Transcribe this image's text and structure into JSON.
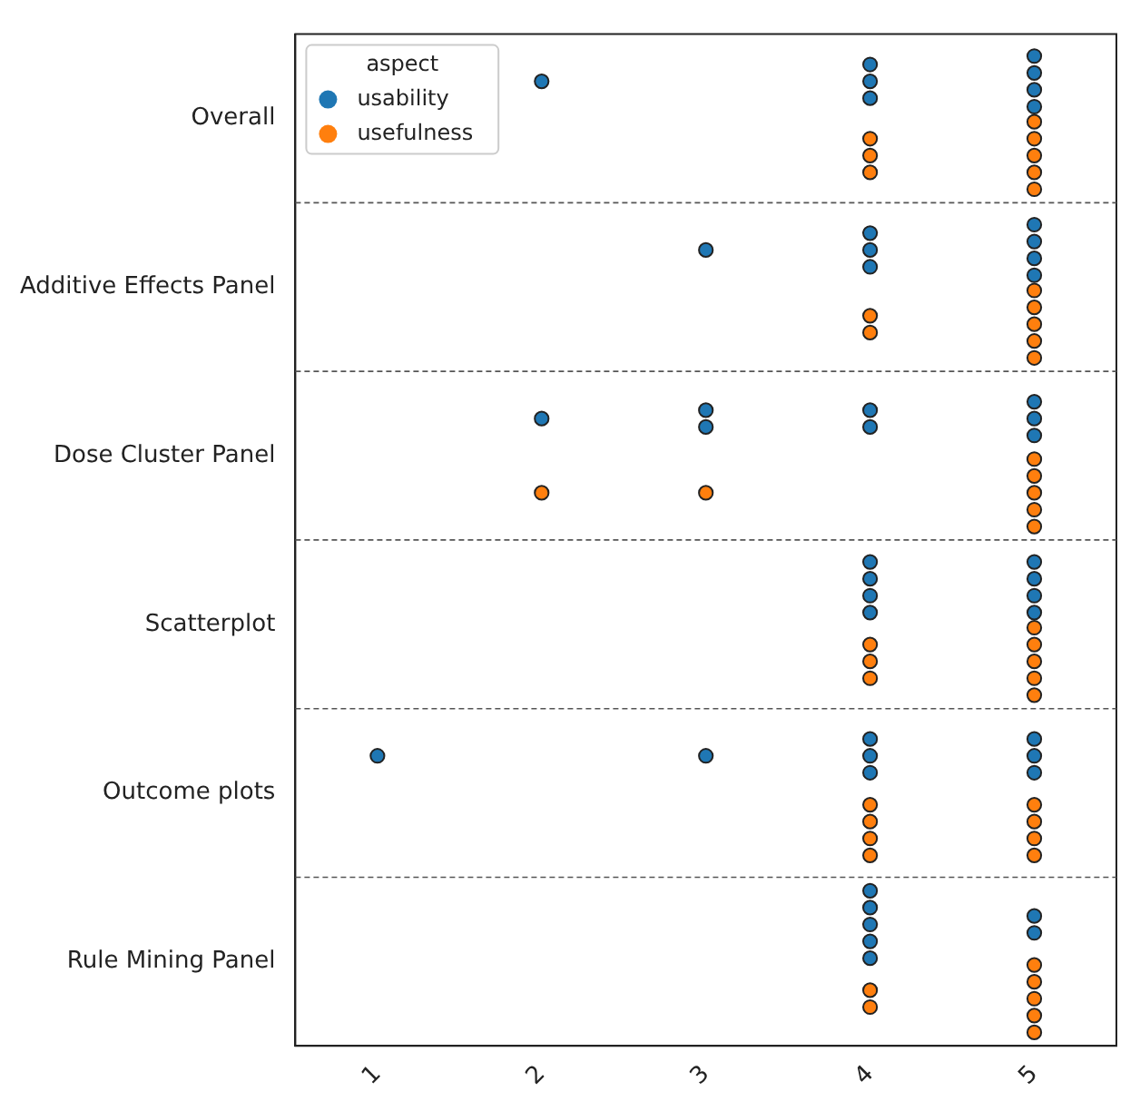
{
  "chart_data": {
    "type": "scatter",
    "orientation": "horizontal",
    "legend_title": "aspect",
    "legend": "top left",
    "grid": "y",
    "line_style": "dashed",
    "marker": "circle",
    "categories": [
      "Overall",
      "Additive Effects Panel",
      "Dose Cluster Panel",
      "Scatterplot",
      "Outcome plots",
      "Rule Mining Panel"
    ],
    "xlim": [
      0.5,
      5.5
    ],
    "xticks": [
      1,
      2,
      3,
      4,
      5
    ],
    "series": [
      {
        "name": "usability",
        "color": "#1f77b4",
        "x": [
          "Overall",
          "Overall",
          "Overall",
          "Overall",
          "Overall",
          "Overall",
          "Overall",
          "Overall",
          "Additive Effects Panel",
          "Additive Effects Panel",
          "Additive Effects Panel",
          "Additive Effects Panel",
          "Additive Effects Panel",
          "Additive Effects Panel",
          "Additive Effects Panel",
          "Additive Effects Panel",
          "Dose Cluster Panel",
          "Dose Cluster Panel",
          "Dose Cluster Panel",
          "Dose Cluster Panel",
          "Dose Cluster Panel",
          "Dose Cluster Panel",
          "Dose Cluster Panel",
          "Dose Cluster Panel",
          "Scatterplot",
          "Scatterplot",
          "Scatterplot",
          "Scatterplot",
          "Scatterplot",
          "Scatterplot",
          "Scatterplot",
          "Scatterplot",
          "Outcome plots",
          "Outcome plots",
          "Outcome plots",
          "Outcome plots",
          "Outcome plots",
          "Outcome plots",
          "Outcome plots",
          "Outcome plots",
          "Rule Mining Panel",
          "Rule Mining Panel",
          "Rule Mining Panel",
          "Rule Mining Panel",
          "Rule Mining Panel",
          "Rule Mining Panel",
          "Rule Mining Panel"
        ],
        "values": [
          2,
          4,
          4,
          4,
          5,
          5,
          5,
          5,
          3,
          4,
          4,
          4,
          5,
          5,
          5,
          5,
          2,
          3,
          3,
          4,
          4,
          5,
          5,
          5,
          4,
          4,
          4,
          4,
          5,
          5,
          5,
          5,
          1,
          3,
          4,
          4,
          4,
          5,
          5,
          5,
          4,
          4,
          4,
          4,
          4,
          5,
          5
        ]
      },
      {
        "name": "usefulness",
        "color": "#ff7f0e",
        "x": [
          "Overall",
          "Overall",
          "Overall",
          "Overall",
          "Overall",
          "Overall",
          "Overall",
          "Overall",
          "Additive Effects Panel",
          "Additive Effects Panel",
          "Additive Effects Panel",
          "Additive Effects Panel",
          "Additive Effects Panel",
          "Additive Effects Panel",
          "Additive Effects Panel",
          "Dose Cluster Panel",
          "Dose Cluster Panel",
          "Dose Cluster Panel",
          "Dose Cluster Panel",
          "Dose Cluster Panel",
          "Dose Cluster Panel",
          "Dose Cluster Panel",
          "Scatterplot",
          "Scatterplot",
          "Scatterplot",
          "Scatterplot",
          "Scatterplot",
          "Scatterplot",
          "Scatterplot",
          "Scatterplot",
          "Outcome plots",
          "Outcome plots",
          "Outcome plots",
          "Outcome plots",
          "Outcome plots",
          "Outcome plots",
          "Outcome plots",
          "Outcome plots",
          "Rule Mining Panel",
          "Rule Mining Panel",
          "Rule Mining Panel",
          "Rule Mining Panel",
          "Rule Mining Panel",
          "Rule Mining Panel",
          "Rule Mining Panel"
        ],
        "values": [
          4,
          4,
          4,
          5,
          5,
          5,
          5,
          5,
          4,
          4,
          5,
          5,
          5,
          5,
          5,
          2,
          3,
          5,
          5,
          5,
          5,
          5,
          4,
          4,
          4,
          5,
          5,
          5,
          5,
          5,
          4,
          4,
          4,
          4,
          5,
          5,
          5,
          5,
          4,
          4,
          5,
          5,
          5,
          5,
          5
        ]
      }
    ]
  }
}
